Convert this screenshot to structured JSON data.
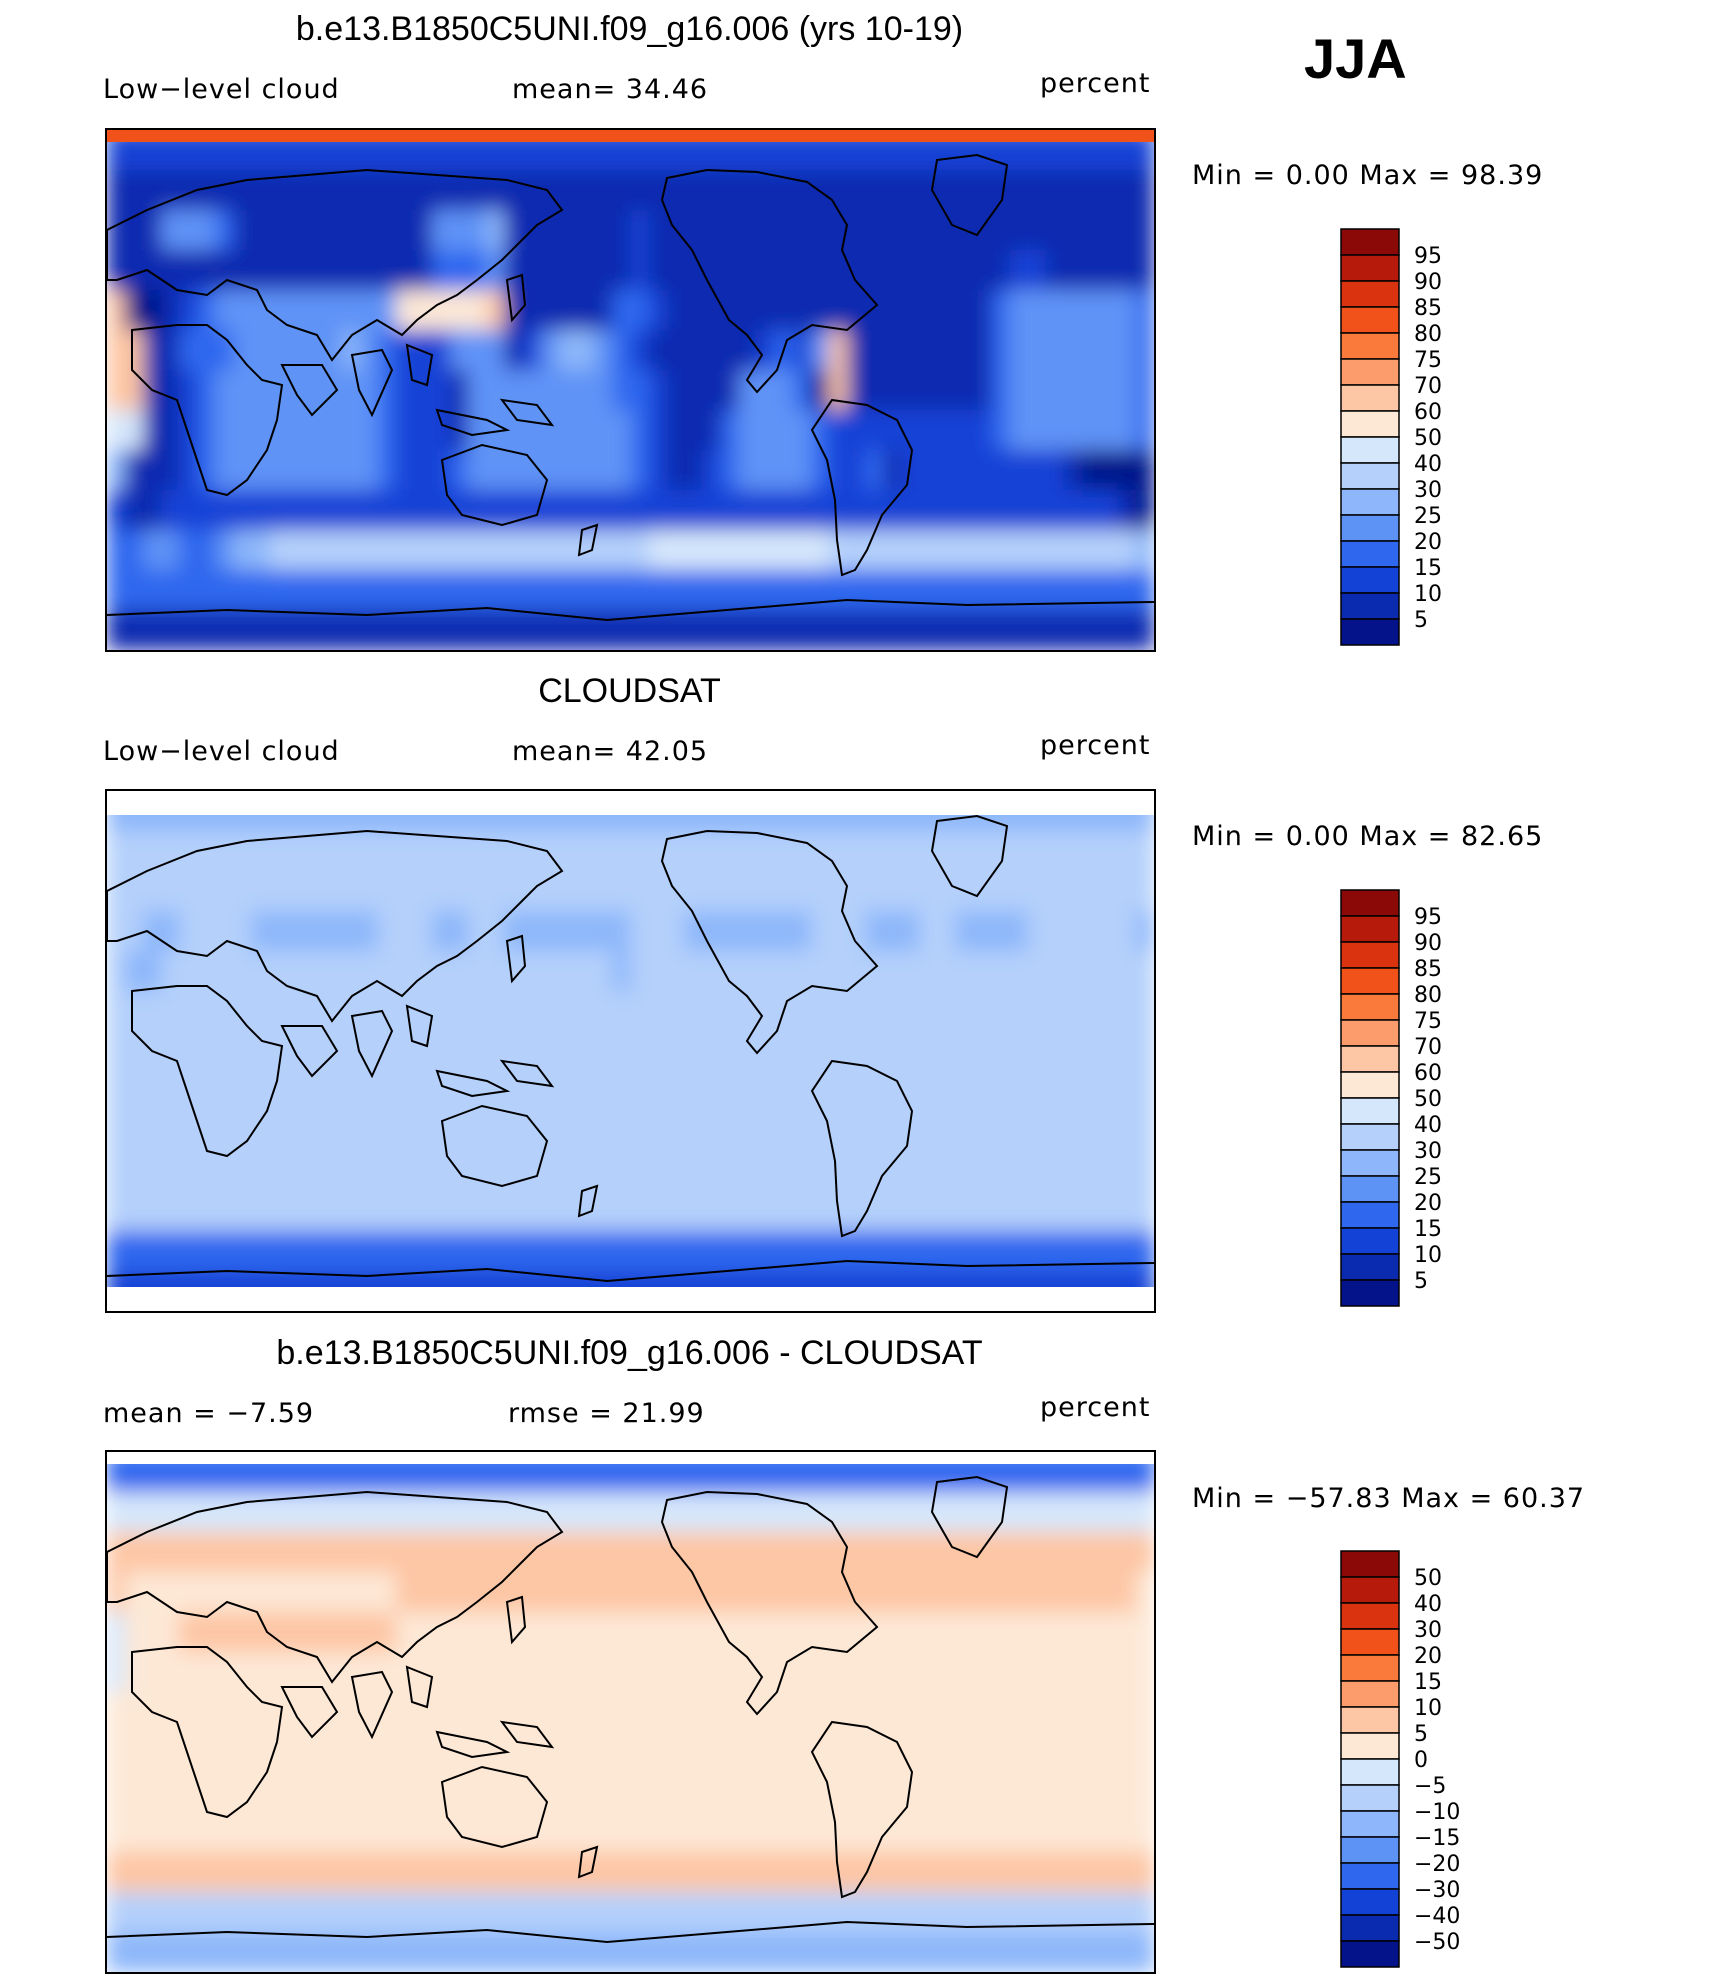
{
  "season": "JJA",
  "panels": [
    {
      "title": "b.e13.B1850C5UNI.f09_g16.006 (yrs 10-19)",
      "left_label": "Low−level cloud",
      "center_label": "mean=   34.46",
      "units": "percent",
      "minmax": "Min =     0.00 Max =   98.39"
    },
    {
      "title": "CLOUDSAT",
      "left_label": "Low−level cloud",
      "center_label": "mean=   42.05",
      "units": "percent",
      "minmax": "Min =     0.00 Max =   82.65"
    },
    {
      "title": "b.e13.B1850C5UNI.f09_g16.006 - CLOUDSAT",
      "left_label": "mean =   −7.59",
      "center_label": "rmse =   21.99",
      "units": "percent",
      "minmax": "Min = −57.83 Max =   60.37"
    }
  ],
  "chart_data": [
    {
      "type": "heatmap",
      "title": "b.e13.B1850C5UNI.f09_g16.006 (yrs 10-19)",
      "variable": "Low-level cloud",
      "units": "percent",
      "mean": 34.46,
      "min": 0.0,
      "max": 98.39,
      "colorbar_levels": [
        "95",
        "90",
        "85",
        "80",
        "75",
        "70",
        "60",
        "50",
        "40",
        "30",
        "25",
        "20",
        "15",
        "10",
        "5"
      ],
      "colors": [
        "#8b0a07",
        "#b51a0b",
        "#d9330f",
        "#f0521a",
        "#fa7a3c",
        "#fc9c6c",
        "#fdc6a4",
        "#fde8d6",
        "#d5e7fb",
        "#b4d0fb",
        "#8db7fa",
        "#5e93f6",
        "#2f68ef",
        "#1343d6",
        "#0a2bb0",
        "#05138a"
      ],
      "rows": [
        "2222222222222222222222222222222222222222222222222222222222",
        "1111111111111111111111111111111111111111111111111111111111",
        "1114443111111111114445111111121111111111111111111111111111",
        "1111111111111111113334111111121111111111111111111122111111",
        "9001234444444444888889111111332111111111111111111344444443",
        "9911333444444543222444124554321111112324911111111344444443",
        "9911234444444443222144444444332111144430911111111344444443",
        "7711234444444443222144444444432111344443222222222344444443",
        "5111234444444443222344444444432112344443223122222222210000",
        "2112222222222222222222222222222222222222222222222222222210",
        "3344334556666666666666666666667777777777666666666666666665",
        "3333333333333333333333333333333333333333333333333333333333",
        "1111111111111111111111111111111111111111111111111111111111"
      ]
    },
    {
      "type": "heatmap",
      "title": "CLOUDSAT",
      "variable": "Low-level cloud",
      "units": "percent",
      "mean": 42.05,
      "min": 0.0,
      "max": 82.65,
      "colorbar_levels": [
        "95",
        "90",
        "85",
        "80",
        "75",
        "70",
        "60",
        "50",
        "40",
        "30",
        "25",
        "20",
        "15",
        "10",
        "5"
      ],
      "colors": [
        "#8b0a07",
        "#b51a0b",
        "#d9330f",
        "#f0521a",
        "#fa7a3c",
        "#fc9c6c",
        "#fdc6a4",
        "#fde8d6",
        "#d5e7fb",
        "#b4d0fb",
        "#8db7fa",
        "#5e93f6",
        "#2f68ef",
        "#1343d6",
        "#0a2bb0",
        "#05138a"
      ],
      "rows": [
        "5555555555555555555555555555555555555555555555555555555555",
        "6666666666666666666666666666666666666666666666666666666666",
        "6666666666666666666666666666666666666666666666666666666666",
        "6655666655555556665566555555566655555556665556655556666665",
        "6556666666666666666666666666566666666666666666666666666666",
        "6666666666666666666666666666666666666666666666666666666666",
        "6666666666666666666666666666666666666666666666666666666666",
        "6666666666666666666666666666666666666666666666666666666666",
        "6666666666666666666666666666666666666666666666666666666666",
        "6666666666666666666666666666666666666666666666666666666666",
        "6666666666666666666666666666666666666666666666666666666666",
        "3333333333333333333333333333333333333333333333333333333333",
        "2222222222222222222222222222222222222222222222222222222222"
      ]
    },
    {
      "type": "heatmap",
      "title": "b.e13.B1850C5UNI.f09_g16.006 - CLOUDSAT",
      "units": "percent",
      "mean": -7.59,
      "rmse": 21.99,
      "min": -57.83,
      "max": 60.37,
      "colorbar_levels": [
        "50",
        "40",
        "30",
        "20",
        "15",
        "10",
        "5",
        "0",
        "−5",
        "−10",
        "−15",
        "−20",
        "−30",
        "−40",
        "−50"
      ],
      "colors": [
        "#8b0a07",
        "#b51a0b",
        "#d9330f",
        "#f0521a",
        "#fa7a3c",
        "#fc9c6c",
        "#fdc6a4",
        "#fde8d6",
        "#d5e7fb",
        "#b4d0fb",
        "#8db7fa",
        "#5e93f6",
        "#2f68ef",
        "#1343d6",
        "#0a2bb0",
        "#05138a"
      ],
      "rows": [
        "3333333333333333333333333333333333333333333333333333333333",
        "7777777777777777777777777777777777777777777777777777777777",
        "9999999999999999999999999999999999999999999999999999999999",
        "9888888888888888999999999999999999999999999999999999999998",
        "7888999999999999888888888888888888888888888888888888888888",
        "7888888888888888888888888888888888888888888888888888888888",
        "8888888888888888888888888888888888888888888888888888888888",
        "8888888888888888888888888888888888888888888888888888888888",
        "8888888888888888888888888888888888888888888888888888888888",
        "8888888888888888888888888888888888888888888888888888888888",
        "9999999999999999999999999999999999999999999999999999999999",
        "6666666666666666666666666666666666666666666666666666666666",
        "5555555555555555555555555555555555555555555555555555555555"
      ]
    }
  ]
}
